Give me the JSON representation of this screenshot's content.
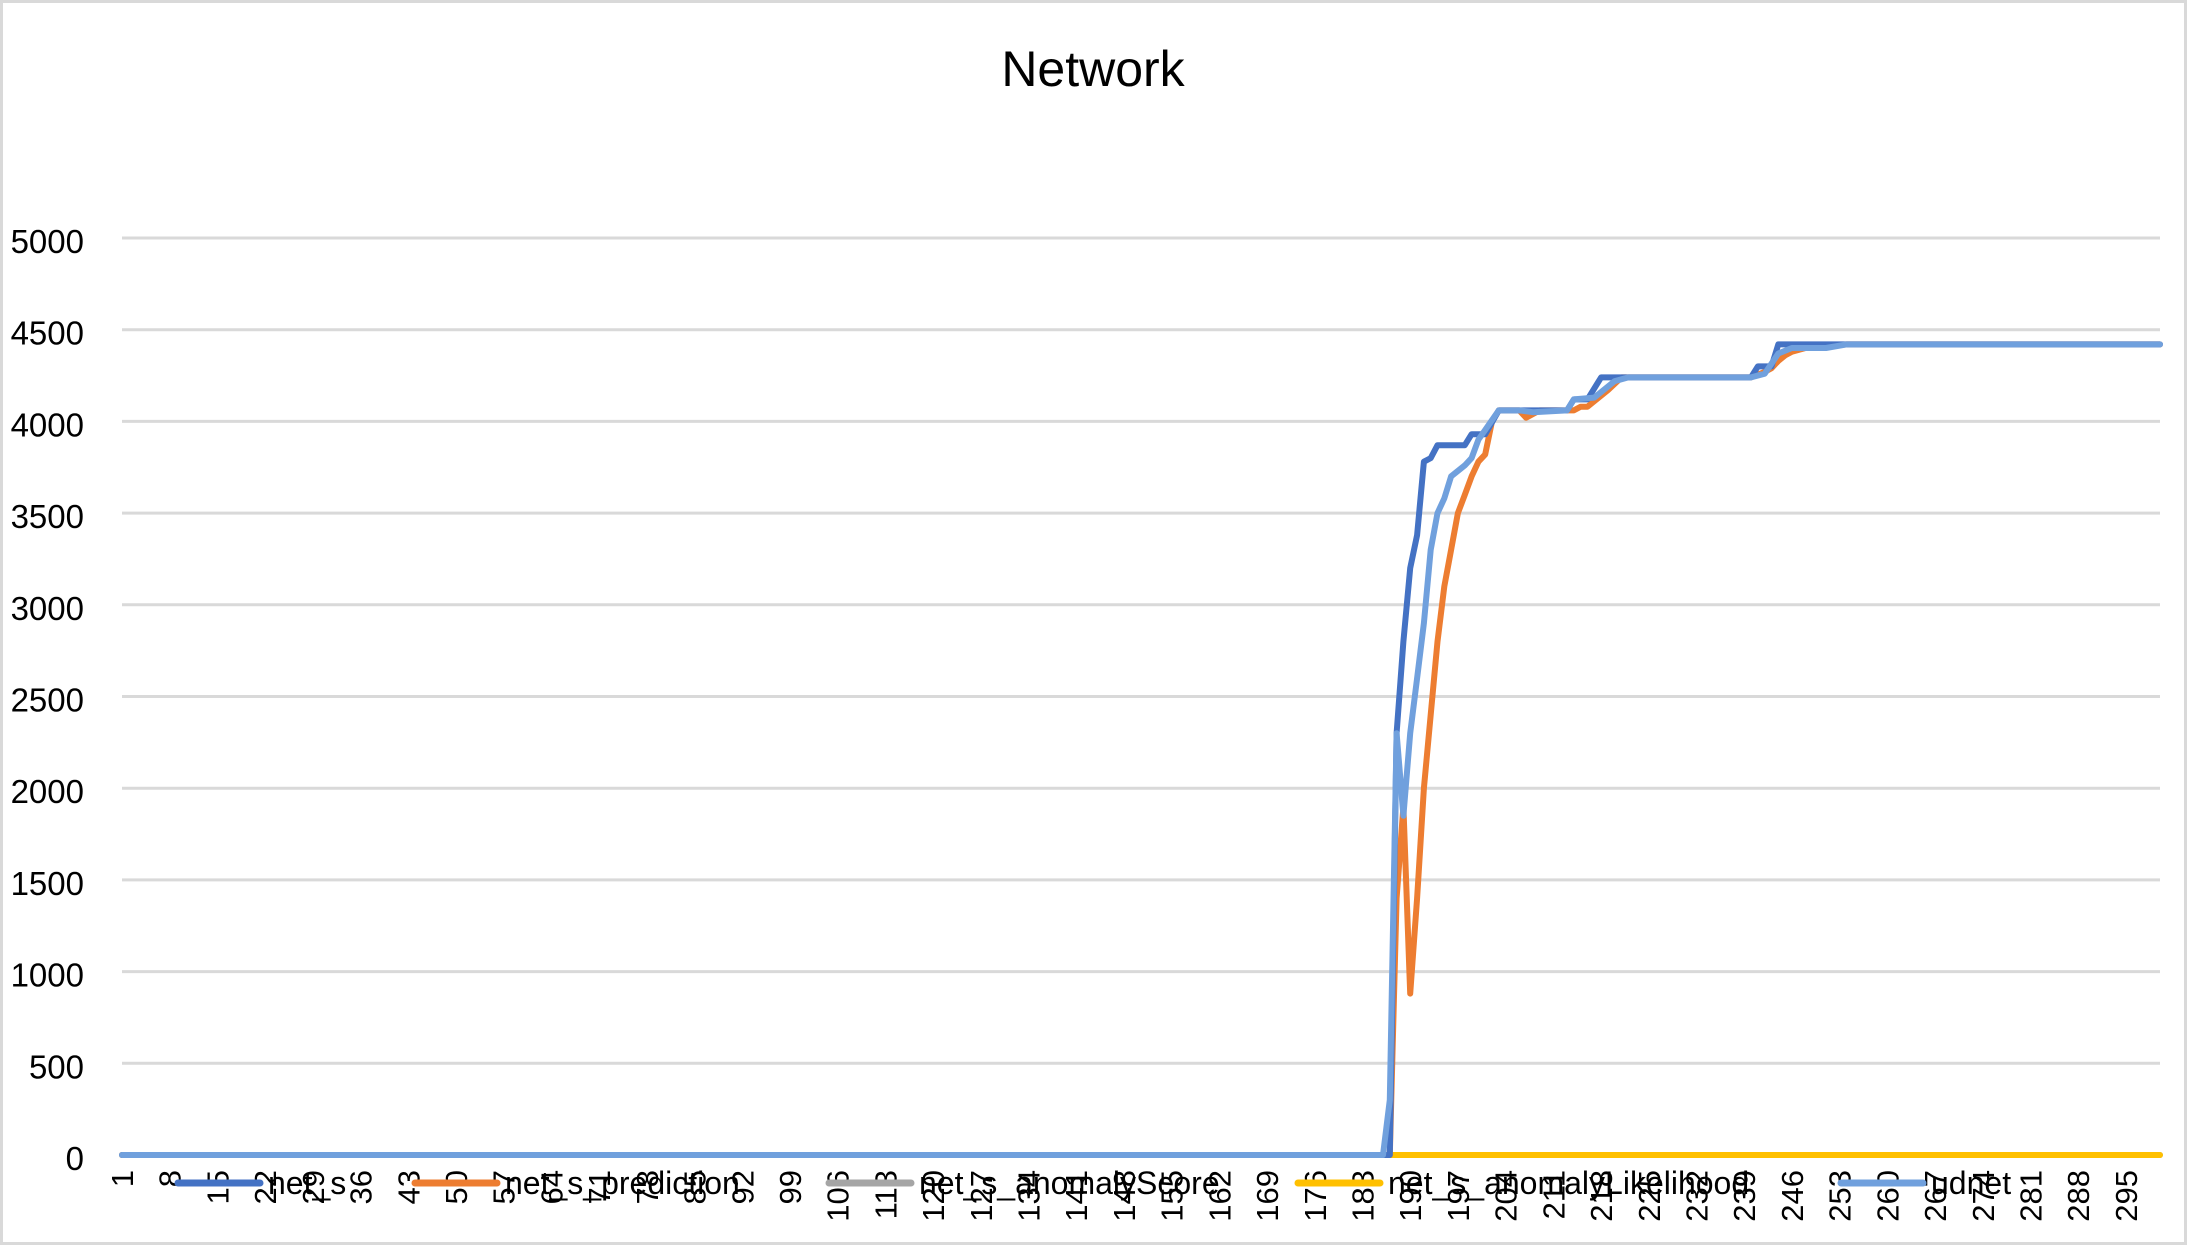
{
  "chart_data": {
    "type": "line",
    "title": "Network",
    "xlabel": "",
    "ylabel": "",
    "ylim": [
      0,
      5000
    ],
    "yticks": [
      0,
      500,
      1000,
      1500,
      2000,
      2500,
      3000,
      3500,
      4000,
      4500,
      5000
    ],
    "xlim": [
      1,
      300
    ],
    "xticks": [
      1,
      8,
      15,
      22,
      29,
      36,
      43,
      50,
      57,
      64,
      71,
      78,
      85,
      92,
      99,
      106,
      113,
      120,
      127,
      134,
      141,
      148,
      155,
      162,
      169,
      176,
      183,
      190,
      197,
      204,
      211,
      218,
      225,
      232,
      239,
      246,
      253,
      260,
      267,
      274,
      281,
      288,
      295
    ],
    "grid": true,
    "legend_position": "bottom",
    "series": [
      {
        "name": "net_s",
        "color": "#4472C4",
        "points": [
          [
            1,
            0
          ],
          [
            187,
            0
          ],
          [
            188,
            2300
          ],
          [
            189,
            2800
          ],
          [
            190,
            3200
          ],
          [
            191,
            3380
          ],
          [
            192,
            3780
          ],
          [
            193,
            3800
          ],
          [
            194,
            3870
          ],
          [
            198,
            3870
          ],
          [
            199,
            3930
          ],
          [
            201,
            3930
          ],
          [
            203,
            4060
          ],
          [
            207,
            4060
          ],
          [
            209,
            4060
          ],
          [
            213,
            4060
          ],
          [
            214,
            4120
          ],
          [
            216,
            4120
          ],
          [
            218,
            4240
          ],
          [
            240,
            4240
          ],
          [
            241,
            4300
          ],
          [
            243,
            4300
          ],
          [
            244,
            4420
          ],
          [
            300,
            4420
          ]
        ]
      },
      {
        "name": "net_s_prediction",
        "color": "#ED7D31",
        "points": [
          [
            1,
            0
          ],
          [
            187,
            0
          ],
          [
            188,
            1400
          ],
          [
            189,
            1900
          ],
          [
            190,
            880
          ],
          [
            191,
            1400
          ],
          [
            192,
            2000
          ],
          [
            193,
            2400
          ],
          [
            194,
            2800
          ],
          [
            195,
            3100
          ],
          [
            196,
            3300
          ],
          [
            197,
            3500
          ],
          [
            198,
            3600
          ],
          [
            199,
            3700
          ],
          [
            200,
            3780
          ],
          [
            201,
            3820
          ],
          [
            202,
            4000
          ],
          [
            203,
            4060
          ],
          [
            206,
            4060
          ],
          [
            207,
            4020
          ],
          [
            209,
            4060
          ],
          [
            214,
            4060
          ],
          [
            215,
            4080
          ],
          [
            216,
            4080
          ],
          [
            217,
            4110
          ],
          [
            219,
            4170
          ],
          [
            221,
            4240
          ],
          [
            240,
            4240
          ],
          [
            242,
            4270
          ],
          [
            243,
            4290
          ],
          [
            244,
            4330
          ],
          [
            245,
            4360
          ],
          [
            246,
            4380
          ],
          [
            248,
            4400
          ],
          [
            251,
            4410
          ],
          [
            254,
            4420
          ],
          [
            300,
            4420
          ]
        ]
      },
      {
        "name": "net_s_anomalyScore",
        "color": "#A5A5A5",
        "points": [
          [
            1,
            0
          ],
          [
            300,
            0
          ]
        ]
      },
      {
        "name": "net_s_anomalyLikelihood",
        "color": "#FFC000",
        "points": [
          [
            1,
            0
          ],
          [
            300,
            0
          ]
        ]
      },
      {
        "name": "udnet",
        "color": "#70A0DD",
        "points": [
          [
            1,
            0
          ],
          [
            186,
            0
          ],
          [
            187,
            300
          ],
          [
            188,
            2300
          ],
          [
            189,
            1850
          ],
          [
            190,
            2300
          ],
          [
            191,
            2600
          ],
          [
            192,
            2900
          ],
          [
            193,
            3300
          ],
          [
            194,
            3500
          ],
          [
            195,
            3580
          ],
          [
            196,
            3700
          ],
          [
            198,
            3760
          ],
          [
            199,
            3800
          ],
          [
            200,
            3900
          ],
          [
            203,
            4060
          ],
          [
            206,
            4060
          ],
          [
            208,
            4050
          ],
          [
            213,
            4060
          ],
          [
            214,
            4120
          ],
          [
            217,
            4130
          ],
          [
            218,
            4160
          ],
          [
            220,
            4220
          ],
          [
            222,
            4240
          ],
          [
            240,
            4240
          ],
          [
            242,
            4260
          ],
          [
            244,
            4370
          ],
          [
            246,
            4400
          ],
          [
            251,
            4400
          ],
          [
            254,
            4420
          ],
          [
            300,
            4420
          ]
        ]
      }
    ]
  }
}
